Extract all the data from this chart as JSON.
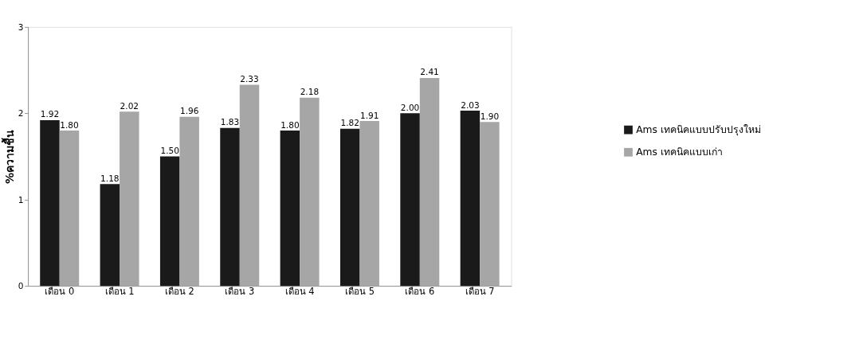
{
  "chart_data": {
    "type": "bar",
    "ylabel": "%ความชื้น",
    "categories": [
      "เดือน 0",
      "เดือน 1",
      "เดือน 2",
      "เดือน 3",
      "เดือน 4",
      "เดือน 5",
      "เดือน 6",
      "เดือน 7"
    ],
    "series": [
      {
        "name": "Ams เทคนิคแบบปรับปรุงใหม่",
        "color": "#1a1a1a",
        "values": [
          1.92,
          1.18,
          1.5,
          1.83,
          1.8,
          1.82,
          2.0,
          2.03
        ],
        "value_labels": [
          "1.92",
          "1.18",
          "1.50",
          "1.83",
          "1.80",
          "1.82",
          "2.00",
          "2.03"
        ]
      },
      {
        "name": "Ams เทคนิคแบบเก่า",
        "color": "#a6a6a6",
        "values": [
          1.8,
          2.02,
          1.96,
          2.33,
          2.18,
          1.91,
          2.41,
          1.9
        ],
        "value_labels": [
          "1.80",
          "2.02",
          "1.96",
          "2.33",
          "2.18",
          "1.91",
          "2.41",
          "1.90"
        ]
      }
    ],
    "ylim": [
      0,
      3
    ],
    "yticks": [
      0,
      1,
      2,
      3
    ],
    "grid": false,
    "legend": "right"
  }
}
